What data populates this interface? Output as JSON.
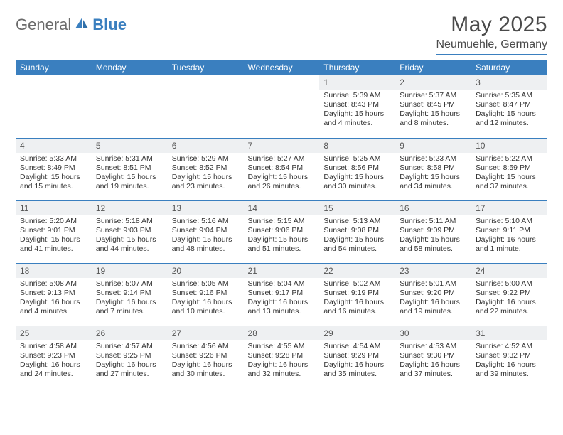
{
  "logo": {
    "text_left": "General",
    "text_right": "Blue"
  },
  "title": "May 2025",
  "location": "Neumuehle, Germany",
  "colors": {
    "header_bg": "#3a7fbf",
    "header_text": "#ffffff",
    "daynum_bg": "#eef0f2",
    "rule": "#3a7fbf",
    "body_text": "#333333",
    "logo_gray": "#6b6b6b",
    "logo_blue": "#3a7fbf"
  },
  "weekdays": [
    "Sunday",
    "Monday",
    "Tuesday",
    "Wednesday",
    "Thursday",
    "Friday",
    "Saturday"
  ],
  "layout": {
    "first_weekday_index": 4,
    "days_in_month": 31
  },
  "days": {
    "1": {
      "sunrise": "5:39 AM",
      "sunset": "8:43 PM",
      "daylight": "15 hours and 4 minutes."
    },
    "2": {
      "sunrise": "5:37 AM",
      "sunset": "8:45 PM",
      "daylight": "15 hours and 8 minutes."
    },
    "3": {
      "sunrise": "5:35 AM",
      "sunset": "8:47 PM",
      "daylight": "15 hours and 12 minutes."
    },
    "4": {
      "sunrise": "5:33 AM",
      "sunset": "8:49 PM",
      "daylight": "15 hours and 15 minutes."
    },
    "5": {
      "sunrise": "5:31 AM",
      "sunset": "8:51 PM",
      "daylight": "15 hours and 19 minutes."
    },
    "6": {
      "sunrise": "5:29 AM",
      "sunset": "8:52 PM",
      "daylight": "15 hours and 23 minutes."
    },
    "7": {
      "sunrise": "5:27 AM",
      "sunset": "8:54 PM",
      "daylight": "15 hours and 26 minutes."
    },
    "8": {
      "sunrise": "5:25 AM",
      "sunset": "8:56 PM",
      "daylight": "15 hours and 30 minutes."
    },
    "9": {
      "sunrise": "5:23 AM",
      "sunset": "8:58 PM",
      "daylight": "15 hours and 34 minutes."
    },
    "10": {
      "sunrise": "5:22 AM",
      "sunset": "8:59 PM",
      "daylight": "15 hours and 37 minutes."
    },
    "11": {
      "sunrise": "5:20 AM",
      "sunset": "9:01 PM",
      "daylight": "15 hours and 41 minutes."
    },
    "12": {
      "sunrise": "5:18 AM",
      "sunset": "9:03 PM",
      "daylight": "15 hours and 44 minutes."
    },
    "13": {
      "sunrise": "5:16 AM",
      "sunset": "9:04 PM",
      "daylight": "15 hours and 48 minutes."
    },
    "14": {
      "sunrise": "5:15 AM",
      "sunset": "9:06 PM",
      "daylight": "15 hours and 51 minutes."
    },
    "15": {
      "sunrise": "5:13 AM",
      "sunset": "9:08 PM",
      "daylight": "15 hours and 54 minutes."
    },
    "16": {
      "sunrise": "5:11 AM",
      "sunset": "9:09 PM",
      "daylight": "15 hours and 58 minutes."
    },
    "17": {
      "sunrise": "5:10 AM",
      "sunset": "9:11 PM",
      "daylight": "16 hours and 1 minute."
    },
    "18": {
      "sunrise": "5:08 AM",
      "sunset": "9:13 PM",
      "daylight": "16 hours and 4 minutes."
    },
    "19": {
      "sunrise": "5:07 AM",
      "sunset": "9:14 PM",
      "daylight": "16 hours and 7 minutes."
    },
    "20": {
      "sunrise": "5:05 AM",
      "sunset": "9:16 PM",
      "daylight": "16 hours and 10 minutes."
    },
    "21": {
      "sunrise": "5:04 AM",
      "sunset": "9:17 PM",
      "daylight": "16 hours and 13 minutes."
    },
    "22": {
      "sunrise": "5:02 AM",
      "sunset": "9:19 PM",
      "daylight": "16 hours and 16 minutes."
    },
    "23": {
      "sunrise": "5:01 AM",
      "sunset": "9:20 PM",
      "daylight": "16 hours and 19 minutes."
    },
    "24": {
      "sunrise": "5:00 AM",
      "sunset": "9:22 PM",
      "daylight": "16 hours and 22 minutes."
    },
    "25": {
      "sunrise": "4:58 AM",
      "sunset": "9:23 PM",
      "daylight": "16 hours and 24 minutes."
    },
    "26": {
      "sunrise": "4:57 AM",
      "sunset": "9:25 PM",
      "daylight": "16 hours and 27 minutes."
    },
    "27": {
      "sunrise": "4:56 AM",
      "sunset": "9:26 PM",
      "daylight": "16 hours and 30 minutes."
    },
    "28": {
      "sunrise": "4:55 AM",
      "sunset": "9:28 PM",
      "daylight": "16 hours and 32 minutes."
    },
    "29": {
      "sunrise": "4:54 AM",
      "sunset": "9:29 PM",
      "daylight": "16 hours and 35 minutes."
    },
    "30": {
      "sunrise": "4:53 AM",
      "sunset": "9:30 PM",
      "daylight": "16 hours and 37 minutes."
    },
    "31": {
      "sunrise": "4:52 AM",
      "sunset": "9:32 PM",
      "daylight": "16 hours and 39 minutes."
    }
  },
  "label_prefix": {
    "sunrise": "Sunrise: ",
    "sunset": "Sunset: ",
    "daylight": "Daylight: "
  }
}
